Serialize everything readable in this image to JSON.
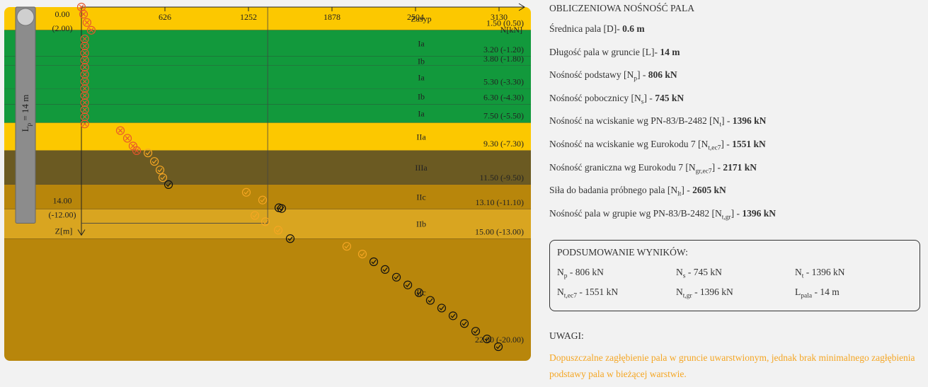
{
  "chart_data": {
    "type": "pile-capacity",
    "x_label": "N[kN]",
    "y_label": "Z[m]",
    "xlim": [
      0,
      3130
    ],
    "xticks": [
      0,
      626,
      1252,
      1878,
      2504,
      3130
    ],
    "zlim": [
      0,
      22
    ],
    "top_labels": [
      "0.00",
      "(2.00)"
    ],
    "bottom_labels": [
      "14.00",
      "(-12.00)"
    ],
    "pile_length": 14,
    "pile_label": {
      "main": "L",
      "sub": "p",
      "rest": " = 14 m"
    },
    "limit_line": 1396,
    "layers": [
      {
        "name": "Zasyp",
        "bottom": 1.5,
        "label": "1.50 (0.50)",
        "color": "#fcc800"
      },
      {
        "name": "Ia",
        "bottom": 3.2,
        "label": "3.20 (-1.20)",
        "color": "#12993c"
      },
      {
        "name": "Ib",
        "bottom": 3.8,
        "label": "3.80 (-1.80)",
        "color": "#12993c"
      },
      {
        "name": "Ia",
        "bottom": 5.3,
        "label": "5.30 (-3.30)",
        "color": "#12993c"
      },
      {
        "name": "Ib",
        "bottom": 6.3,
        "label": "6.30 (-4.30)",
        "color": "#12993c"
      },
      {
        "name": "Ia",
        "bottom": 7.5,
        "label": "7.50 (-5.50)",
        "color": "#12993c"
      },
      {
        "name": "IIa",
        "bottom": 9.3,
        "label": "9.30 (-7.30)",
        "color": "#fcc800"
      },
      {
        "name": "IIIa",
        "bottom": 11.5,
        "label": "11.50 (-9.50)",
        "color": "#6b5a22"
      },
      {
        "name": "IIc",
        "bottom": 13.1,
        "label": "13.10 (-11.10)",
        "color": "#b8860b"
      },
      {
        "name": "IIb",
        "bottom": 15.0,
        "label": "15.00 (-13.00)",
        "color": "#d9a520"
      },
      {
        "name": "IIc",
        "bottom": 22.0,
        "label": "22.00 (-20.00)",
        "color": "#b8860b"
      }
    ],
    "points": {
      "N": [
        0,
        16,
        42,
        74,
        25,
        25,
        25,
        25,
        25,
        25,
        25,
        25,
        25,
        25,
        25,
        25,
        25,
        292,
        345,
        387,
        414,
        499,
        547,
        589,
        610,
        653,
        1236,
        1358,
        1480,
        1501,
        1300,
        1379,
        1475,
        1565,
        1989,
        2106,
        2191,
        2276,
        2361,
        2446,
        2530,
        2615,
        2700,
        2785,
        2870,
        2955,
        3040,
        3125
      ],
      "z": [
        0,
        0.46,
        1.0,
        1.5,
        2.06,
        2.52,
        2.98,
        3.44,
        3.9,
        4.36,
        4.82,
        5.28,
        5.73,
        6.19,
        6.65,
        7.11,
        7.57,
        8.0,
        8.5,
        9.0,
        9.3,
        9.45,
        10.0,
        10.55,
        11.05,
        11.5,
        12.0,
        12.5,
        13.0,
        13.05,
        13.5,
        13.9,
        14.45,
        15.0,
        15.5,
        16.0,
        16.5,
        17.0,
        17.5,
        18.0,
        18.5,
        19.0,
        19.5,
        20.0,
        20.5,
        21.0,
        21.5,
        22.0
      ],
      "status": [
        "fail",
        "fail",
        "fail",
        "fail",
        "fail",
        "fail",
        "fail",
        "fail",
        "fail",
        "fail",
        "fail",
        "fail",
        "fail",
        "fail",
        "fail",
        "fail",
        "fail",
        "fail",
        "fail",
        "fail",
        "fail",
        "warn",
        "warn",
        "warn",
        "warn",
        "ok",
        "warn",
        "warn",
        "ok",
        "ok",
        "warn",
        "warn",
        "warn",
        "ok",
        "warn",
        "warn",
        "ok",
        "ok",
        "ok",
        "ok",
        "ok",
        "ok",
        "ok",
        "ok",
        "ok",
        "ok",
        "ok",
        "ok"
      ]
    },
    "status_colors": {
      "fail": "#e8572d",
      "warn": "#f5a623",
      "ok": "#111111"
    }
  },
  "results": {
    "title": "OBLICZENIOWA NOŚNOŚĆ PALA",
    "rows": [
      {
        "label": "Średnica pala [D]- ",
        "value": "0.6 m"
      },
      {
        "label": "Długość pala w gruncie [L]- ",
        "value": "14 m"
      },
      {
        "label": "Nośność podstawy [N",
        "sub": "p",
        "suffix": "] - ",
        "value": "806 kN"
      },
      {
        "label": "Nośność pobocznicy [N",
        "sub": "s",
        "suffix": "] - ",
        "value": "745 kN"
      },
      {
        "label": "Nośność na wciskanie wg PN-83/B-2482 [N",
        "sub": "t",
        "suffix": "] - ",
        "value": "1396 kN"
      },
      {
        "label": "Nośność na wciskanie wg Eurokodu 7 [N",
        "sub": "t,ec7",
        "suffix": "] - ",
        "value": "1551 kN"
      },
      {
        "label": "Nośność graniczna wg Eurokodu 7 [N",
        "sub": "gr,ec7",
        "suffix": "] - ",
        "value": "2171 kN"
      },
      {
        "label": "Siła do badania próbnego pala [N",
        "sub": "lt",
        "suffix": "] - ",
        "value": "2605 kN"
      },
      {
        "label": "Nośność pala w grupie wg PN-83/B-2482 [N",
        "sub": "t,gr",
        "suffix": "] - ",
        "value": "1396 kN"
      }
    ]
  },
  "summary": {
    "title": "PODSUMOWANIE WYNIKÓW:",
    "items": [
      {
        "symbol": "N",
        "sub": "p",
        "text": " - 806 kN"
      },
      {
        "symbol": "N",
        "sub": "s",
        "text": " - 745 kN"
      },
      {
        "symbol": "N",
        "sub": "t",
        "text": " - 1396 kN"
      },
      {
        "symbol": "N",
        "sub": "t,ec7",
        "text": " - 1551 kN"
      },
      {
        "symbol": "N",
        "sub": "t,gr",
        "text": " - 1396 kN"
      },
      {
        "symbol": "L",
        "sub": "pala",
        "text": " - 14 m"
      }
    ]
  },
  "notes": {
    "title": "UWAGI:",
    "text": "Dopuszczalne zagłębienie pala w gruncie uwarstwionym, jednak brak minimalnego zagłębienia podstawy pala w bieżącej warstwie."
  }
}
